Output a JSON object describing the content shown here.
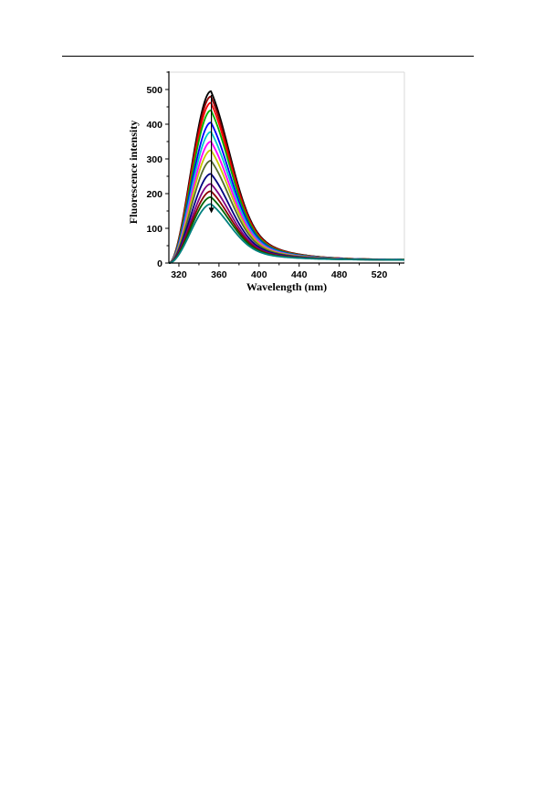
{
  "chart_data": {
    "type": "line",
    "title": "",
    "xlabel": "Wavelength (nm)",
    "ylabel": "Fluorescence intensity",
    "xlim": [
      310,
      545
    ],
    "ylim": [
      0,
      550
    ],
    "x_ticks": [
      320,
      360,
      400,
      440,
      480,
      520
    ],
    "y_ticks": [
      0,
      100,
      200,
      300,
      400,
      500
    ],
    "grid": false,
    "legend": "none",
    "annotations": [
      "arrow pointing down at the emission maximum (~352 nm), indicating decreasing intensity"
    ],
    "peak_wavelength": 352,
    "tail_value_at_545nm": 9,
    "series": [
      {
        "color": "#000000",
        "peak": 495
      },
      {
        "color": "#8b0000",
        "peak": 480
      },
      {
        "color": "#ff0000",
        "peak": 462
      },
      {
        "color": "#00b000",
        "peak": 440
      },
      {
        "color": "#0000ff",
        "peak": 405
      },
      {
        "color": "#00cccc",
        "peak": 378
      },
      {
        "color": "#ff00ff",
        "peak": 350
      },
      {
        "color": "#c8c800",
        "peak": 325
      },
      {
        "color": "#556b2f",
        "peak": 295
      },
      {
        "color": "#000080",
        "peak": 257
      },
      {
        "color": "#800080",
        "peak": 228
      },
      {
        "color": "#8b0000",
        "peak": 207
      },
      {
        "color": "#006400",
        "peak": 190
      },
      {
        "color": "#008080",
        "peak": 170
      }
    ]
  }
}
